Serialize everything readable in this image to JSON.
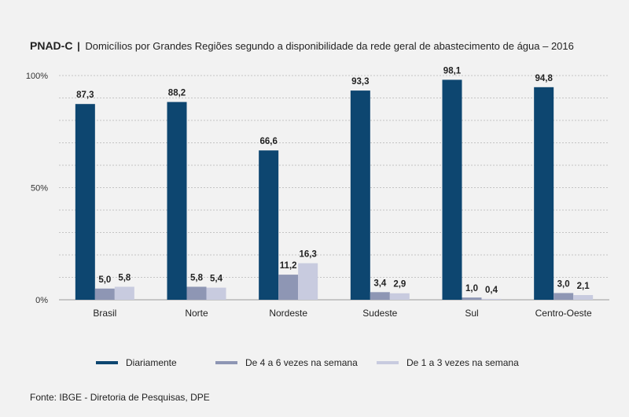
{
  "title": {
    "brand": "PNAD-C",
    "separator": "|",
    "text": "Domicílios por Grandes Regiões segundo a disponibilidade da rede geral de abastecimento de água – 2016"
  },
  "chart_data": {
    "type": "bar",
    "title": "Domicílios por Grandes Regiões segundo a disponibilidade da rede geral de abastecimento de água – 2016",
    "categories": [
      "Brasil",
      "Norte",
      "Nordeste",
      "Sudeste",
      "Sul",
      "Centro-Oeste"
    ],
    "series": [
      {
        "name": "Diariamente",
        "color": "#0d4670",
        "values": [
          87.3,
          88.2,
          66.6,
          93.3,
          98.1,
          94.8
        ],
        "labels": [
          "87,3",
          "88,2",
          "66,6",
          "93,3",
          "98,1",
          "94,8"
        ]
      },
      {
        "name": "De 4 a 6 vezes na semana",
        "color": "#8e96b4",
        "values": [
          5.0,
          5.8,
          11.2,
          3.4,
          1.0,
          3.0
        ],
        "labels": [
          "5,0",
          "5,8",
          "11,2",
          "3,4",
          "1,0",
          "3,0"
        ]
      },
      {
        "name": "De 1 a 3 vezes na semana",
        "color": "#c8cbdf",
        "values": [
          5.8,
          5.4,
          16.3,
          2.9,
          0.4,
          2.1
        ],
        "labels": [
          "5,8",
          "5,4",
          "16,3",
          "2,9",
          "0,4",
          "2,1"
        ]
      }
    ],
    "yticks": [
      {
        "value": 0,
        "label": "0%"
      },
      {
        "value": 50,
        "label": "50%"
      },
      {
        "value": 100,
        "label": "100%"
      }
    ],
    "ylim": [
      0,
      100
    ],
    "grid": "dashed horizontal",
    "legend_position": "bottom"
  },
  "source": "Fonte: IBGE - Diretoria de Pesquisas, DPE"
}
